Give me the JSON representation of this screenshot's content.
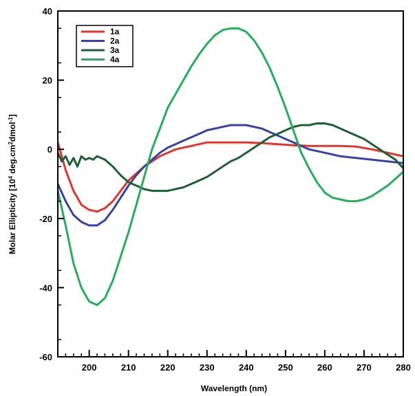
{
  "chart_data": {
    "type": "line",
    "xlabel": "Wavelength  (nm)",
    "ylabel": {
      "prefix": "Molar  Ellipticity  [10",
      "sup1": "4",
      "middle": " deg.cm",
      "sup2": "2",
      "suffix": "dmol",
      "sup3": "-1",
      "end": "]"
    },
    "xlim": [
      192,
      280
    ],
    "ylim": [
      -60,
      40
    ],
    "x_ticks": [
      200,
      210,
      220,
      230,
      240,
      250,
      260,
      270,
      280
    ],
    "y_ticks": [
      -60,
      -40,
      -20,
      0,
      20,
      40
    ],
    "legend_position": "top-left",
    "series": [
      {
        "name": "1a",
        "color": "#e8322c",
        "x": [
          192,
          194,
          196,
          198,
          200,
          202,
          204,
          206,
          208,
          210,
          212,
          214,
          216,
          218,
          220,
          222,
          224,
          226,
          228,
          230,
          232,
          236,
          240,
          244,
          248,
          252,
          256,
          260,
          264,
          268,
          272,
          276,
          280
        ],
        "y": [
          2,
          -6,
          -12,
          -16,
          -17.5,
          -18,
          -17,
          -15,
          -12,
          -9,
          -7,
          -5,
          -3.5,
          -2,
          -1,
          0,
          0.5,
          1,
          1.5,
          2,
          2,
          2,
          2,
          1.8,
          1.5,
          1.2,
          1,
          1,
          1,
          0.8,
          0,
          -1,
          -2
        ]
      },
      {
        "name": "2a",
        "color": "#3842a0",
        "x": [
          192,
          194,
          196,
          198,
          200,
          202,
          204,
          206,
          208,
          210,
          212,
          214,
          216,
          218,
          220,
          222,
          224,
          226,
          228,
          230,
          232,
          234,
          236,
          238,
          240,
          242,
          244,
          246,
          248,
          250,
          252,
          254,
          256,
          258,
          260,
          264,
          268,
          272,
          276,
          280
        ],
        "y": [
          -10,
          -15,
          -19,
          -21,
          -22,
          -22,
          -20.5,
          -17.5,
          -14,
          -10.5,
          -7.5,
          -5,
          -3,
          -1,
          0.5,
          1.5,
          2.5,
          3.5,
          4.5,
          5.5,
          6,
          6.5,
          7,
          7,
          7,
          6.5,
          6,
          5,
          4,
          3,
          2,
          1,
          0,
          -0.5,
          -1,
          -2,
          -2.5,
          -3,
          -3.5,
          -4
        ]
      },
      {
        "name": "3a",
        "color": "#1f5e36",
        "x": [
          192,
          193,
          194,
          195,
          196,
          197,
          198,
          199,
          200,
          201,
          202,
          203,
          204,
          206,
          208,
          210,
          212,
          214,
          216,
          218,
          220,
          222,
          224,
          226,
          228,
          230,
          232,
          234,
          236,
          238,
          240,
          242,
          244,
          246,
          248,
          250,
          252,
          254,
          256,
          258,
          260,
          262,
          264,
          266,
          268,
          270,
          272,
          274,
          276,
          278,
          280
        ],
        "y": [
          -1,
          -3.5,
          -2,
          -4.5,
          -2.5,
          -5,
          -2,
          -3,
          -2.5,
          -3,
          -2,
          -2.5,
          -3,
          -5,
          -7.5,
          -9.5,
          -10.5,
          -11.5,
          -12,
          -12,
          -12,
          -11.5,
          -11,
          -10,
          -9,
          -8,
          -6.5,
          -5,
          -3.5,
          -2.5,
          -1,
          0.5,
          2,
          3.5,
          4.5,
          5.5,
          6.5,
          7,
          7,
          7.5,
          7.5,
          7,
          6,
          5,
          4,
          3,
          1.5,
          0,
          -1.5,
          -3,
          -5.5
        ]
      },
      {
        "name": "4a",
        "color": "#22b05a",
        "x": [
          192,
          194,
          196,
          198,
          200,
          202,
          204,
          206,
          208,
          210,
          212,
          214,
          216,
          218,
          220,
          222,
          224,
          226,
          228,
          230,
          232,
          234,
          236,
          238,
          240,
          242,
          244,
          246,
          248,
          250,
          252,
          254,
          256,
          258,
          260,
          262,
          264,
          266,
          268,
          270,
          272,
          274,
          276,
          278,
          280
        ],
        "y": [
          -12,
          -22,
          -33,
          -40,
          -44,
          -45,
          -43,
          -38,
          -31,
          -24,
          -16,
          -8,
          0,
          6,
          12,
          16,
          20,
          24,
          27.5,
          30.5,
          33,
          34.5,
          35,
          35,
          34,
          31.5,
          28,
          23.5,
          18,
          12,
          5.5,
          -1,
          -5.5,
          -9.5,
          -12.5,
          -14,
          -14.5,
          -15,
          -15,
          -14.5,
          -13.5,
          -12,
          -10.5,
          -8.5,
          -6.5
        ]
      }
    ]
  }
}
